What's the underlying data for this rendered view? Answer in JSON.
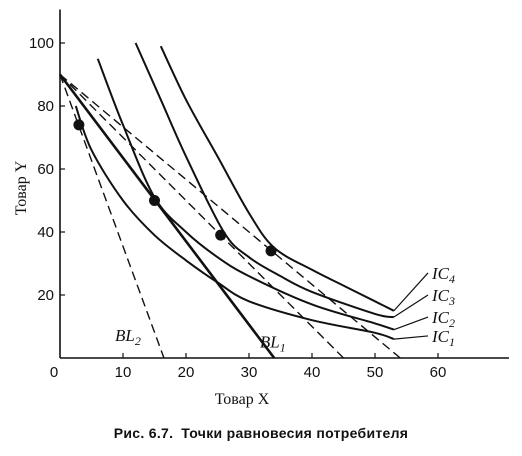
{
  "chart_data": {
    "type": "line",
    "xlabel": "Товар X",
    "ylabel": "Товар Y",
    "xlim": [
      0,
      70
    ],
    "ylim": [
      0,
      110
    ],
    "x_ticks": [
      "0",
      "10",
      "20",
      "30",
      "40",
      "50",
      "60"
    ],
    "y_ticks": [
      "20",
      "40",
      "60",
      "80",
      "100"
    ],
    "x_tick_values": [
      0,
      10,
      20,
      30,
      40,
      50,
      60
    ],
    "y_tick_values": [
      20,
      40,
      60,
      80,
      100
    ],
    "grid": false,
    "indifference_curves": [
      {
        "name": "IC1",
        "label_main": "IC",
        "label_sub": "1",
        "label_value": 7,
        "points": [
          [
            2.5,
            80
          ],
          [
            5,
            66
          ],
          [
            10,
            50
          ],
          [
            15,
            39
          ],
          [
            20,
            31
          ],
          [
            25,
            24
          ],
          [
            30,
            18
          ],
          [
            40,
            12
          ],
          [
            50,
            8
          ],
          [
            53,
            6
          ]
        ]
      },
      {
        "name": "IC2",
        "label_main": "IC",
        "label_sub": "2",
        "label_value": 13,
        "points": [
          [
            6,
            95
          ],
          [
            10,
            74
          ],
          [
            15,
            51
          ],
          [
            20,
            40
          ],
          [
            25,
            32
          ],
          [
            30,
            26
          ],
          [
            40,
            17
          ],
          [
            50,
            11
          ],
          [
            53,
            9
          ]
        ]
      },
      {
        "name": "IC3",
        "label_main": "IC",
        "label_sub": "3",
        "label_value": 20,
        "points": [
          [
            12,
            100
          ],
          [
            16,
            82
          ],
          [
            20,
            64
          ],
          [
            26,
            40
          ],
          [
            30,
            32
          ],
          [
            35,
            26
          ],
          [
            40,
            21
          ],
          [
            50,
            14
          ],
          [
            53,
            13
          ]
        ]
      },
      {
        "name": "IC4",
        "label_main": "IC",
        "label_sub": "4",
        "label_value": 27,
        "points": [
          [
            16,
            99
          ],
          [
            20,
            82
          ],
          [
            25,
            64
          ],
          [
            30,
            46
          ],
          [
            34,
            35
          ],
          [
            40,
            28
          ],
          [
            45,
            23
          ],
          [
            50,
            18
          ],
          [
            53,
            15
          ]
        ]
      }
    ],
    "budget_lines": [
      {
        "name": "BL1",
        "label_main": "BL",
        "label_sub": "1",
        "style": "solid",
        "x": [
          0,
          34
        ],
        "y": [
          90,
          0
        ],
        "label_x": 33,
        "label_y": 4
      },
      {
        "name": "BL2",
        "label_main": "BL",
        "label_sub": "2",
        "style": "dashed",
        "x": [
          0,
          16.5
        ],
        "y": [
          90,
          0
        ],
        "label_x": 10,
        "label_y": 6
      },
      {
        "name": "BL3",
        "style": "dashed",
        "x": [
          0,
          45
        ],
        "y": [
          90,
          0
        ]
      },
      {
        "name": "BL4",
        "style": "dashed",
        "x": [
          0,
          54
        ],
        "y": [
          90,
          0
        ]
      }
    ],
    "equilibrium_points": [
      {
        "x": 3,
        "y": 74
      },
      {
        "x": 15,
        "y": 50
      },
      {
        "x": 25.5,
        "y": 39
      },
      {
        "x": 33.5,
        "y": 34
      }
    ]
  },
  "caption": {
    "figure_number": "Рис. 6.7.",
    "text": "Точки равновесия потребителя"
  }
}
